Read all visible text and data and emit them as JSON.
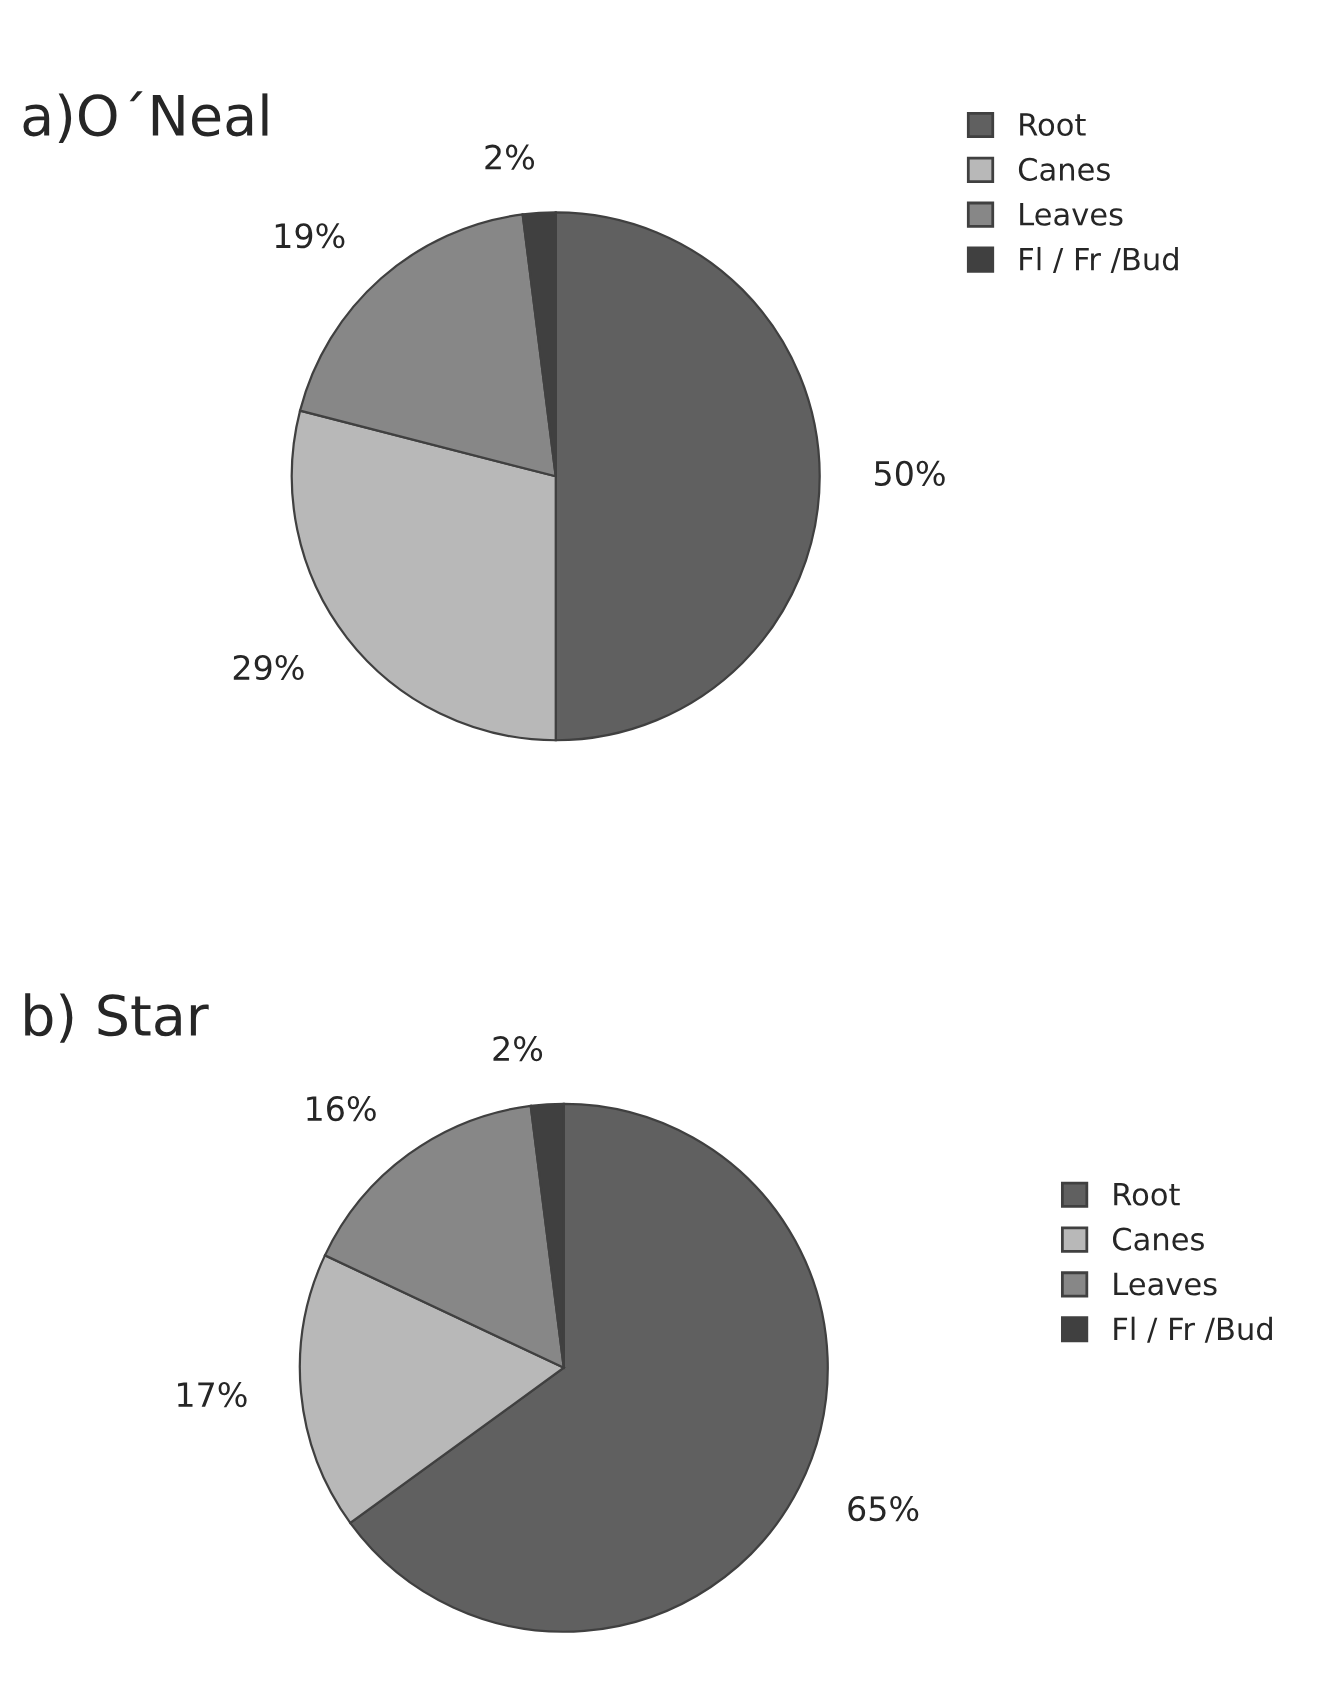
{
  "chart_data": [
    {
      "type": "pie",
      "title": "a)O´Neal",
      "categories": [
        "Root",
        "Canes",
        "Leaves",
        "Fl / Fr /Bud"
      ],
      "values": [
        50,
        29,
        19,
        2
      ],
      "value_labels": [
        "50%",
        "29%",
        "19%",
        "2%"
      ],
      "colors": [
        "#606060",
        "#b8b8b8",
        "#878787",
        "#404040"
      ],
      "legend": "top right"
    },
    {
      "type": "pie",
      "title": "b) Star",
      "categories": [
        "Root",
        "Canes",
        "Leaves",
        "Fl / Fr /Bud"
      ],
      "values": [
        65,
        17,
        16,
        2
      ],
      "value_labels": [
        "65%",
        "17%",
        "16%",
        "2%"
      ],
      "colors": [
        "#606060",
        "#b8b8b8",
        "#878787",
        "#404040"
      ],
      "legend": "right"
    }
  ]
}
